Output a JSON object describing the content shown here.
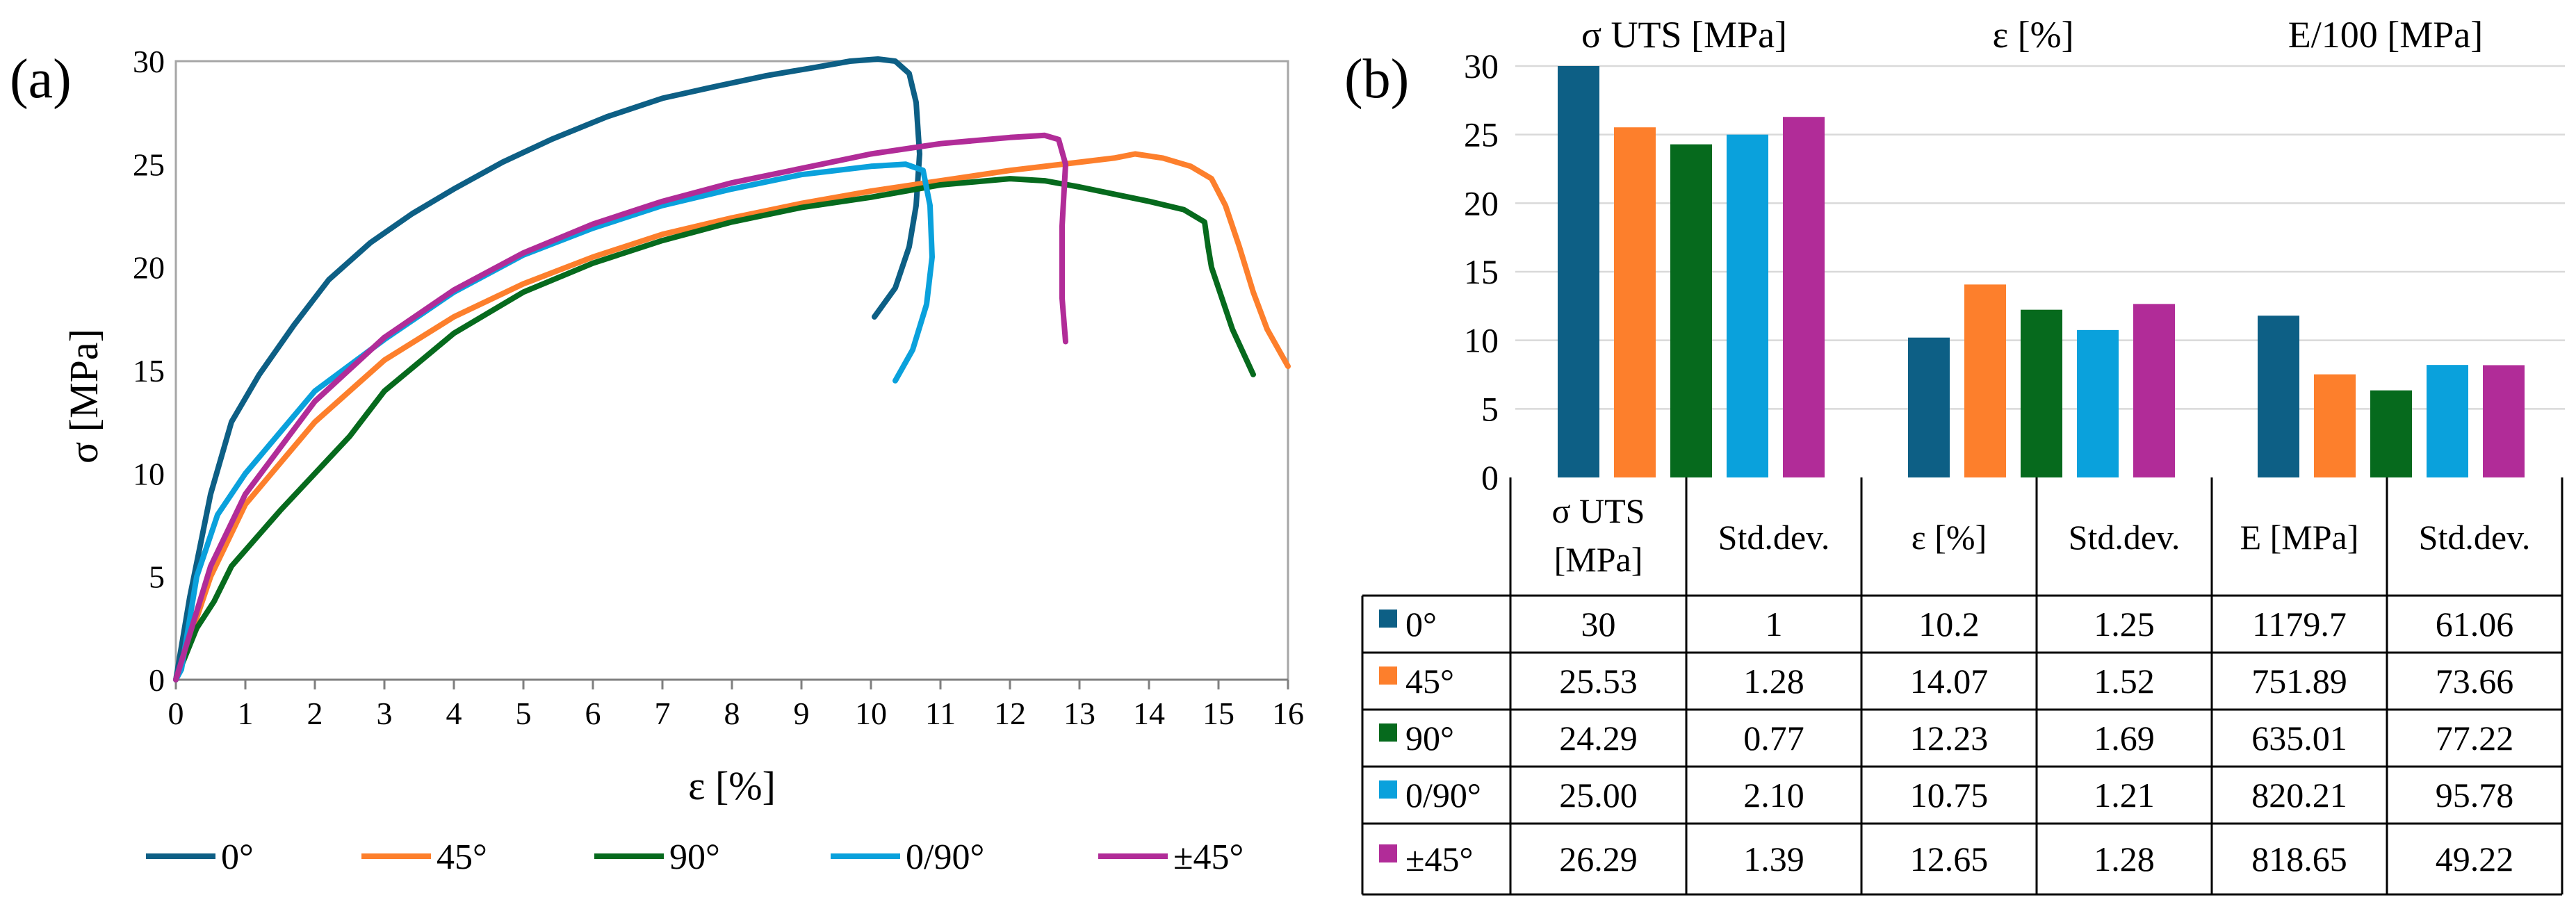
{
  "panel_a": {
    "label": "(a)",
    "chart_data": {
      "type": "line",
      "xlabel": "ε [%]",
      "ylabel": "σ  [MPa]",
      "xlim": [
        0,
        16
      ],
      "ylim": [
        0,
        30
      ],
      "xticks": [
        "0",
        "1",
        "2",
        "3",
        "4",
        "5",
        "6",
        "7",
        "8",
        "9",
        "10",
        "11",
        "12",
        "13",
        "14",
        "15",
        "16"
      ],
      "yticks": [
        "0",
        "5",
        "10",
        "15",
        "20",
        "25",
        "30"
      ],
      "legend": [
        "0°",
        "45°",
        "90°",
        "0/90°",
        "±45°"
      ],
      "colors": [
        "#0d5f85",
        "#fd7f2c",
        "#066a1d",
        "#0aa1dc",
        "#b12c98"
      ],
      "series": [
        {
          "name": "0°",
          "x": [
            0,
            0.2,
            0.5,
            0.8,
            1.2,
            1.7,
            2.2,
            2.8,
            3.4,
            4,
            4.7,
            5.4,
            6.2,
            7,
            7.8,
            8.5,
            9.2,
            9.7,
            10.1,
            10.35,
            10.55,
            10.65,
            10.7,
            10.65,
            10.55,
            10.35,
            10.05
          ],
          "y": [
            0,
            4,
            9,
            12.5,
            14.8,
            17.2,
            19.4,
            21.2,
            22.6,
            23.8,
            25.1,
            26.2,
            27.3,
            28.2,
            28.8,
            29.3,
            29.7,
            30,
            30.1,
            30,
            29.4,
            28,
            25.5,
            23,
            21,
            19,
            17.6
          ]
        },
        {
          "name": "45°",
          "x": [
            0,
            0.5,
            1,
            2,
            3,
            4,
            5,
            6,
            7,
            8,
            9,
            10,
            11,
            12,
            13,
            13.5,
            13.8,
            14.2,
            14.6,
            14.9,
            15.1,
            15.3,
            15.5,
            15.7,
            16
          ],
          "y": [
            0,
            5,
            8.5,
            12.5,
            15.5,
            17.6,
            19.2,
            20.5,
            21.6,
            22.4,
            23.1,
            23.7,
            24.2,
            24.7,
            25.1,
            25.3,
            25.5,
            25.3,
            24.9,
            24.3,
            23,
            21,
            18.8,
            17,
            15.2
          ]
        },
        {
          "name": "90°",
          "x": [
            0,
            0.3,
            0.55,
            0.8,
            1.5,
            2.5,
            3,
            4,
            5,
            6,
            7,
            8,
            9,
            10,
            11,
            12,
            12.5,
            13,
            14,
            14.5,
            14.8,
            14.85,
            14.9,
            15.2,
            15.5
          ],
          "y": [
            0,
            2.5,
            3.8,
            5.5,
            8.2,
            11.8,
            14,
            16.8,
            18.8,
            20.2,
            21.3,
            22.2,
            22.9,
            23.4,
            24,
            24.3,
            24.2,
            23.9,
            23.2,
            22.8,
            22.2,
            21,
            20,
            17,
            14.8
          ]
        },
        {
          "name": "0/90°",
          "x": [
            0,
            0.08,
            0.3,
            0.6,
            1,
            2,
            3,
            4,
            5,
            6,
            7,
            8,
            9,
            10,
            10.5,
            10.75,
            10.85,
            10.88,
            10.8,
            10.6,
            10.35
          ],
          "y": [
            0,
            0.5,
            5,
            8,
            10,
            14,
            16.5,
            18.8,
            20.6,
            21.9,
            23,
            23.8,
            24.5,
            24.9,
            25,
            24.7,
            23,
            20.5,
            18.2,
            16,
            14.5
          ]
        },
        {
          "name": "±45°",
          "x": [
            0,
            0.5,
            1,
            2,
            3,
            4,
            5,
            6,
            7,
            8,
            9,
            10,
            11,
            12,
            12.5,
            12.7,
            12.8,
            12.75,
            12.75,
            12.8
          ],
          "y": [
            0,
            5.5,
            9,
            13.5,
            16.6,
            18.9,
            20.7,
            22.1,
            23.2,
            24.1,
            24.8,
            25.5,
            26,
            26.3,
            26.4,
            26.2,
            25,
            22,
            18.5,
            16.4
          ]
        }
      ]
    }
  },
  "panel_b": {
    "label": "(b)",
    "chart_data": {
      "type": "bar",
      "group_titles": [
        "σ UTS [MPa]",
        "ε [%]",
        "E/100 [MPa]"
      ],
      "ylim": [
        0,
        30
      ],
      "yticks": [
        "0",
        "5",
        "10",
        "15",
        "20",
        "25",
        "30"
      ],
      "series": [
        {
          "name": "0°",
          "color": "#0d5f85",
          "values": [
            30,
            10.2,
            11.797
          ]
        },
        {
          "name": "45°",
          "color": "#fd7f2c",
          "values": [
            25.53,
            14.07,
            7.5189
          ]
        },
        {
          "name": "90°",
          "color": "#066a1d",
          "values": [
            24.29,
            12.23,
            6.3501
          ]
        },
        {
          "name": "0/90°",
          "color": "#0aa1dc",
          "values": [
            25.0,
            10.75,
            8.2021
          ]
        },
        {
          "name": "±45°",
          "color": "#b12c98",
          "values": [
            26.29,
            12.65,
            8.1865
          ]
        }
      ]
    },
    "table": {
      "headers": [
        [
          "σ UTS",
          "[MPa]"
        ],
        [
          "Std.dev."
        ],
        [
          "ε [%]"
        ],
        [
          "Std.dev."
        ],
        [
          "E [MPa]"
        ],
        [
          "Std.dev."
        ]
      ],
      "rows": [
        {
          "label": "0°",
          "color": "#0d5f85",
          "cells": [
            "30",
            "1",
            "10.2",
            "1.25",
            "1179.7",
            "61.06"
          ]
        },
        {
          "label": "45°",
          "color": "#fd7f2c",
          "cells": [
            "25.53",
            "1.28",
            "14.07",
            "1.52",
            "751.89",
            "73.66"
          ]
        },
        {
          "label": "90°",
          "color": "#066a1d",
          "cells": [
            "24.29",
            "0.77",
            "12.23",
            "1.69",
            "635.01",
            "77.22"
          ]
        },
        {
          "label": "0/90°",
          "color": "#0aa1dc",
          "cells": [
            "25.00",
            "2.10",
            "10.75",
            "1.21",
            "820.21",
            "95.78"
          ]
        },
        {
          "label": "±45°",
          "color": "#b12c98",
          "cells": [
            "26.29",
            "1.39",
            "12.65",
            "1.28",
            "818.65",
            "49.22"
          ]
        }
      ]
    }
  }
}
